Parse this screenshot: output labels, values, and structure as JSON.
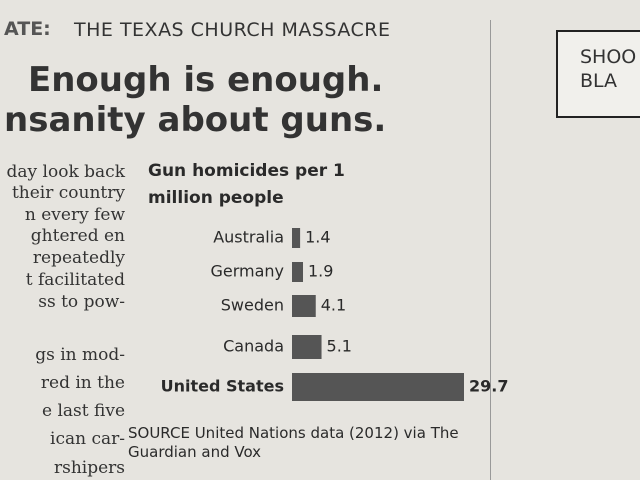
{
  "header": {
    "kicker": "ATE:",
    "section": "THE TEXAS CHURCH MASSACRE"
  },
  "headline": [
    "Enough is enough.",
    "nsanity about guns."
  ],
  "body_lines": [
    "day look back",
    "their country",
    "n every few",
    "ghtered en",
    "repeatedly",
    "t facilitated",
    "ss to pow-",
    "gs in mod-",
    "red in the",
    "e last five",
    "ican car-",
    "rshipers"
  ],
  "cartoon": [
    "SHOO",
    "BLA"
  ],
  "chart_data": {
    "type": "bar",
    "orientation": "horizontal",
    "title": "Gun homicides per 1 million people",
    "categories": [
      "Australia",
      "Germany",
      "Sweden",
      "Canada",
      "United States"
    ],
    "values": [
      1.4,
      1.9,
      4.1,
      5.1,
      29.7
    ],
    "color": "#555555",
    "source": "SOURCE United Nations data (2012) via The Guardian and Vox"
  }
}
